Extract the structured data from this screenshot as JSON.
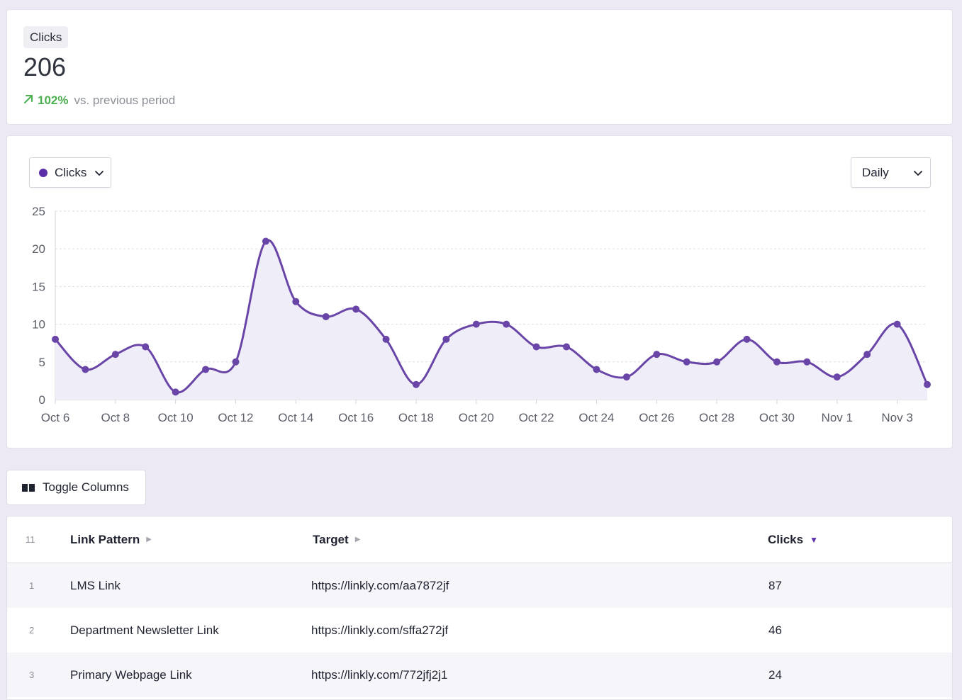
{
  "stat": {
    "label": "Clicks",
    "value": "206",
    "delta_pct": "102%",
    "delta_text": "vs. previous period"
  },
  "chart_controls": {
    "metric_label": "Clicks",
    "period_label": "Daily"
  },
  "chart_data": {
    "type": "area",
    "x": [
      "Oct 6",
      "Oct 7",
      "Oct 8",
      "Oct 9",
      "Oct 10",
      "Oct 11",
      "Oct 12",
      "Oct 13",
      "Oct 14",
      "Oct 15",
      "Oct 16",
      "Oct 17",
      "Oct 18",
      "Oct 19",
      "Oct 20",
      "Oct 21",
      "Oct 22",
      "Oct 23",
      "Oct 24",
      "Oct 25",
      "Oct 26",
      "Oct 27",
      "Oct 28",
      "Oct 29",
      "Oct 30",
      "Oct 31",
      "Nov 1",
      "Nov 2",
      "Nov 3",
      "Nov 4"
    ],
    "tick_labels": [
      "Oct 6",
      "Oct 8",
      "Oct 10",
      "Oct 12",
      "Oct 14",
      "Oct 16",
      "Oct 18",
      "Oct 20",
      "Oct 22",
      "Oct 24",
      "Oct 26",
      "Oct 28",
      "Oct 30",
      "Nov 1",
      "Nov 3"
    ],
    "series": [
      {
        "values": [
          8,
          4,
          6,
          7,
          1,
          4,
          5,
          21,
          13,
          11,
          12,
          8,
          2,
          8,
          10,
          10,
          7,
          7,
          4,
          3,
          6,
          5,
          5,
          8,
          5,
          5,
          3,
          6,
          10,
          2
        ]
      }
    ],
    "ylim": [
      0,
      25
    ],
    "yticks": [
      0,
      5,
      10,
      15,
      20,
      25
    ],
    "grid": true,
    "line_color": "#6a45a8",
    "fill_color": "#efedf7"
  },
  "toolbar": {
    "toggle_columns_label": "Toggle Columns"
  },
  "table": {
    "count": "11",
    "columns": {
      "link_pattern": "Link Pattern",
      "target": "Target",
      "clicks": "Clicks"
    },
    "rows": [
      {
        "idx": "1",
        "link_pattern": "LMS Link",
        "target": "https://linkly.com/aa7872jf",
        "clicks": "87"
      },
      {
        "idx": "2",
        "link_pattern": "Department Newsletter Link",
        "target": "https://linkly.com/sffa272jf",
        "clicks": "46"
      },
      {
        "idx": "3",
        "link_pattern": "Primary Webpage Link",
        "target": "https://linkly.com/772jfj2j1",
        "clicks": "24"
      }
    ]
  },
  "colors": {
    "accent": "#5b2fa8",
    "positive": "#4caf50",
    "background": "#ECE9F4"
  }
}
